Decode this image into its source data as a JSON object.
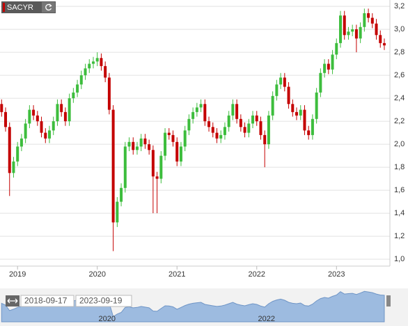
{
  "ticker": "SACYR",
  "range": {
    "from": "2018-09-17",
    "to": "2023-09-19"
  },
  "chart_data": {
    "type": "candlestick",
    "x": [
      2018.8,
      2018.85,
      2018.9,
      2018.95,
      2019.0,
      2019.05,
      2019.1,
      2019.15,
      2019.2,
      2019.25,
      2019.3,
      2019.35,
      2019.4,
      2019.45,
      2019.5,
      2019.55,
      2019.6,
      2019.65,
      2019.7,
      2019.75,
      2019.8,
      2019.85,
      2019.9,
      2019.95,
      2020.0,
      2020.05,
      2020.1,
      2020.15,
      2020.2,
      2020.25,
      2020.3,
      2020.35,
      2020.4,
      2020.45,
      2020.5,
      2020.55,
      2020.6,
      2020.65,
      2020.7,
      2020.75,
      2020.8,
      2020.85,
      2020.9,
      2020.95,
      2021.0,
      2021.05,
      2021.1,
      2021.15,
      2021.2,
      2021.25,
      2021.3,
      2021.35,
      2021.4,
      2021.45,
      2021.5,
      2021.55,
      2021.6,
      2021.65,
      2021.7,
      2021.75,
      2021.8,
      2021.85,
      2021.9,
      2021.95,
      2022.0,
      2022.05,
      2022.1,
      2022.15,
      2022.2,
      2022.25,
      2022.3,
      2022.35,
      2022.4,
      2022.45,
      2022.5,
      2022.55,
      2022.6,
      2022.65,
      2022.7,
      2022.75,
      2022.8,
      2022.85,
      2022.9,
      2022.95,
      2023.0,
      2023.05,
      2023.1,
      2023.15,
      2023.2,
      2023.25,
      2023.3,
      2023.35,
      2023.4,
      2023.45,
      2023.5,
      2023.55,
      2023.6
    ],
    "open": [
      2.35,
      2.28,
      2.15,
      1.75,
      1.85,
      1.98,
      2.05,
      2.18,
      2.3,
      2.25,
      2.2,
      2.1,
      2.05,
      2.12,
      2.2,
      2.35,
      2.28,
      2.2,
      2.4,
      2.45,
      2.52,
      2.6,
      2.66,
      2.7,
      2.72,
      2.75,
      2.68,
      2.58,
      2.3,
      1.32,
      1.5,
      1.62,
      1.98,
      2.02,
      1.95,
      1.98,
      2.05,
      2.0,
      1.95,
      1.72,
      1.7,
      1.9,
      2.1,
      2.08,
      2.02,
      1.85,
      1.98,
      2.12,
      2.22,
      2.28,
      2.32,
      2.35,
      2.2,
      2.15,
      2.1,
      2.05,
      2.08,
      2.15,
      2.25,
      2.35,
      2.22,
      2.15,
      2.1,
      2.18,
      2.25,
      2.2,
      2.08,
      2.0,
      2.25,
      2.42,
      2.52,
      2.58,
      2.5,
      2.35,
      2.28,
      2.25,
      2.3,
      2.12,
      2.08,
      2.22,
      2.45,
      2.62,
      2.7,
      2.65,
      2.78,
      2.88,
      3.12,
      2.95,
      2.98,
      3.0,
      2.92,
      3.02,
      3.14,
      3.1,
      3.05,
      2.95,
      2.88
    ],
    "high": [
      2.39,
      2.32,
      2.19,
      1.89,
      2.02,
      2.09,
      2.22,
      2.34,
      2.34,
      2.29,
      2.24,
      2.14,
      2.16,
      2.24,
      2.39,
      2.39,
      2.32,
      2.44,
      2.49,
      2.56,
      2.64,
      2.7,
      2.74,
      2.76,
      2.8,
      2.79,
      2.72,
      2.62,
      2.34,
      1.54,
      1.66,
      2.02,
      2.06,
      2.06,
      2.02,
      2.09,
      2.09,
      2.04,
      1.99,
      1.76,
      1.94,
      2.14,
      2.14,
      2.12,
      2.06,
      2.02,
      2.16,
      2.26,
      2.32,
      2.36,
      2.39,
      2.39,
      2.24,
      2.19,
      2.14,
      2.12,
      2.19,
      2.29,
      2.39,
      2.39,
      2.26,
      2.19,
      2.22,
      2.29,
      2.29,
      2.24,
      2.12,
      2.29,
      2.46,
      2.56,
      2.62,
      2.62,
      2.54,
      2.39,
      2.32,
      2.34,
      2.34,
      2.16,
      2.26,
      2.49,
      2.66,
      2.74,
      2.74,
      2.82,
      2.92,
      3.16,
      3.16,
      3.02,
      3.04,
      3.04,
      3.06,
      3.18,
      3.18,
      3.14,
      3.09,
      2.99,
      2.92
    ],
    "low": [
      2.24,
      2.11,
      1.55,
      1.71,
      1.81,
      1.94,
      2.01,
      2.14,
      2.21,
      2.16,
      2.06,
      2.01,
      2.01,
      2.08,
      2.16,
      2.24,
      2.16,
      2.16,
      2.36,
      2.41,
      2.48,
      2.56,
      2.62,
      2.66,
      2.68,
      2.64,
      2.54,
      2.26,
      1.07,
      1.28,
      1.46,
      1.58,
      1.94,
      1.91,
      1.91,
      1.94,
      1.96,
      1.91,
      1.4,
      1.4,
      1.66,
      1.86,
      2.04,
      1.98,
      1.81,
      1.81,
      1.94,
      2.08,
      2.18,
      2.24,
      2.28,
      2.16,
      2.11,
      2.06,
      2.01,
      2.01,
      2.04,
      2.11,
      2.21,
      2.18,
      2.11,
      2.06,
      2.06,
      2.14,
      2.16,
      2.04,
      1.8,
      1.96,
      2.21,
      2.38,
      2.48,
      2.46,
      2.31,
      2.24,
      2.21,
      2.21,
      2.08,
      2.04,
      2.04,
      2.18,
      2.41,
      2.58,
      2.61,
      2.61,
      2.74,
      2.84,
      2.91,
      2.91,
      2.94,
      2.8,
      2.88,
      2.98,
      3.06,
      3.01,
      2.91,
      2.84,
      2.82
    ],
    "close": [
      2.28,
      2.15,
      1.75,
      1.85,
      1.98,
      2.05,
      2.18,
      2.3,
      2.25,
      2.2,
      2.1,
      2.05,
      2.12,
      2.2,
      2.35,
      2.28,
      2.2,
      2.4,
      2.45,
      2.52,
      2.6,
      2.66,
      2.7,
      2.72,
      2.75,
      2.68,
      2.58,
      2.3,
      1.32,
      1.5,
      1.62,
      1.98,
      2.02,
      1.95,
      1.98,
      2.05,
      2.0,
      1.95,
      1.72,
      1.7,
      1.9,
      2.1,
      2.08,
      2.02,
      1.85,
      1.98,
      2.12,
      2.22,
      2.28,
      2.32,
      2.35,
      2.2,
      2.15,
      2.1,
      2.05,
      2.08,
      2.15,
      2.25,
      2.35,
      2.22,
      2.15,
      2.1,
      2.18,
      2.25,
      2.2,
      2.08,
      2.0,
      2.25,
      2.42,
      2.52,
      2.58,
      2.5,
      2.35,
      2.28,
      2.25,
      2.3,
      2.12,
      2.08,
      2.22,
      2.45,
      2.62,
      2.7,
      2.65,
      2.78,
      2.88,
      3.12,
      2.95,
      2.98,
      3.0,
      2.92,
      3.02,
      3.14,
      3.1,
      3.05,
      2.95,
      2.88,
      2.86
    ],
    "up_color": "#3dbd3d",
    "down_color": "#c40000",
    "xlim": [
      2018.78,
      2023.67
    ],
    "ylim": [
      0.94,
      3.255
    ],
    "xticks": [
      2019,
      2020,
      2021,
      2022,
      2023
    ],
    "yticks": [
      {
        "value": 1.0,
        "label": "1,0"
      },
      {
        "value": 1.2,
        "label": "1,2"
      },
      {
        "value": 1.4,
        "label": "1,4"
      },
      {
        "value": 1.6,
        "label": "1,6"
      },
      {
        "value": 1.8,
        "label": "1,8"
      },
      {
        "value": 2.0,
        "label": "2,0"
      },
      {
        "value": 2.2,
        "label": "2,2"
      },
      {
        "value": 2.4,
        "label": "2,4"
      },
      {
        "value": 2.6,
        "label": "2,6"
      },
      {
        "value": 2.8,
        "label": "2,8"
      },
      {
        "value": 3.0,
        "label": "3,0"
      },
      {
        "value": 3.2,
        "label": "3,2"
      }
    ],
    "grid": true
  },
  "navigator": {
    "xticks": [
      2020,
      2022
    ],
    "color": "#9dbbe0"
  }
}
